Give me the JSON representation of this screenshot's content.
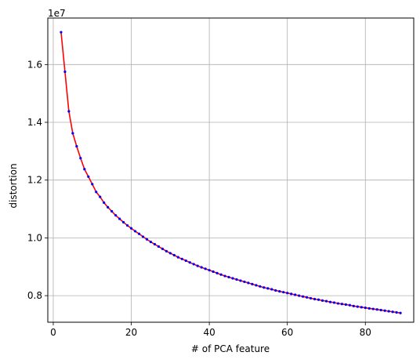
{
  "chart_data": {
    "type": "line",
    "xlabel": "# of PCA feature",
    "ylabel": "distortion",
    "y_offset_label": "1e7",
    "xlim": [
      -1.4,
      92.4
    ],
    "ylim": [
      0.708,
      1.761
    ],
    "x_ticks": [
      0,
      20,
      40,
      60,
      80
    ],
    "y_ticks": [
      0.8,
      1.0,
      1.2,
      1.4,
      1.6
    ],
    "x_tick_labels": [
      "0",
      "20",
      "40",
      "60",
      "80"
    ],
    "y_tick_labels": [
      "0.8",
      "1.0",
      "1.2",
      "1.4",
      "1.6"
    ],
    "grid": true,
    "line_color": "#ff0000",
    "marker_color": "#0000ff",
    "series": [
      {
        "x": [
          2,
          3,
          4,
          5,
          6,
          7,
          8,
          9,
          10,
          11,
          12,
          13,
          14,
          15,
          16,
          17,
          18,
          19,
          20,
          21,
          22,
          23,
          24,
          25,
          26,
          27,
          28,
          29,
          30,
          31,
          32,
          33,
          34,
          35,
          36,
          37,
          38,
          39,
          40,
          41,
          42,
          43,
          44,
          45,
          46,
          47,
          48,
          49,
          50,
          51,
          52,
          53,
          54,
          55,
          56,
          57,
          58,
          59,
          60,
          61,
          62,
          63,
          64,
          65,
          66,
          67,
          68,
          69,
          70,
          71,
          72,
          73,
          74,
          75,
          76,
          77,
          78,
          79,
          80,
          81,
          82,
          83,
          84,
          85,
          86,
          87,
          88,
          89
        ],
        "values": [
          1.712,
          1.575,
          1.438,
          1.362,
          1.317,
          1.276,
          1.238,
          1.212,
          1.186,
          1.159,
          1.142,
          1.122,
          1.106,
          1.092,
          1.078,
          1.066,
          1.054,
          1.043,
          1.033,
          1.023,
          1.014,
          1.004,
          0.995,
          0.986,
          0.978,
          0.97,
          0.962,
          0.954,
          0.947,
          0.94,
          0.933,
          0.927,
          0.921,
          0.915,
          0.909,
          0.903,
          0.898,
          0.893,
          0.888,
          0.883,
          0.878,
          0.873,
          0.868,
          0.864,
          0.86,
          0.856,
          0.852,
          0.848,
          0.844,
          0.84,
          0.836,
          0.832,
          0.828,
          0.825,
          0.822,
          0.818,
          0.815,
          0.812,
          0.809,
          0.806,
          0.803,
          0.8,
          0.797,
          0.794,
          0.791,
          0.788,
          0.786,
          0.783,
          0.781,
          0.778,
          0.776,
          0.773,
          0.771,
          0.769,
          0.767,
          0.764,
          0.762,
          0.76,
          0.758,
          0.756,
          0.754,
          0.752,
          0.75,
          0.748,
          0.746,
          0.744,
          0.742,
          0.74
        ]
      }
    ]
  }
}
